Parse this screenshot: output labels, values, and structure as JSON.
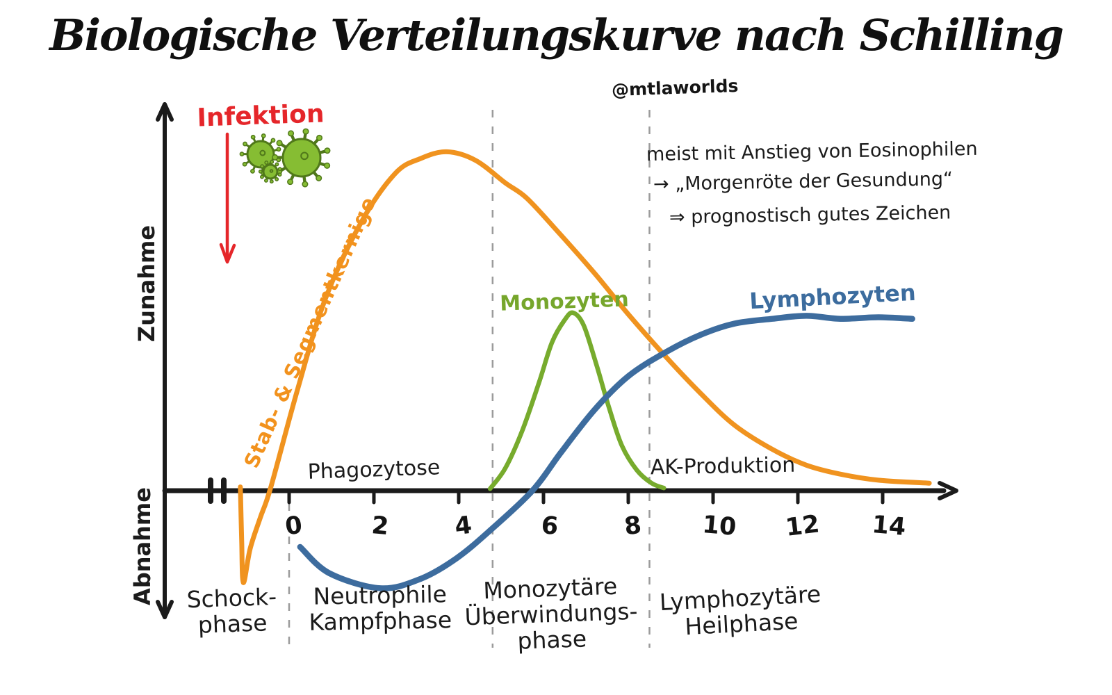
{
  "title": "Biologische Verteilungskurve nach Schilling",
  "credit": "@mtlaworlds",
  "colors": {
    "neutrophils_orange": "#f0931f",
    "monocytes_green": "#77ab2d",
    "lymphocytes_blue": "#3d6c9e",
    "infection_red": "#e5262a",
    "ink_black": "#1b1b1b",
    "divider_gray": "#9b9b9b",
    "virus_body_green": "#86bd33",
    "virus_outline_green": "#50781a"
  },
  "infection": {
    "label": "Infektion",
    "virus_icon_count": 3
  },
  "y_axis": {
    "top_label": "Zunahme",
    "bottom_label": "Abnahme"
  },
  "annotations": {
    "phagozytose": "Phagozytose",
    "ak_produktion": "AK-Produktion",
    "note_lines": [
      "meist mit Anstieg von Eosinophilen",
      "→ „Morgenröte der Gesundung“",
      "⇒ prognostisch gutes Zeichen"
    ]
  },
  "phases": [
    {
      "lines": [
        "Schock-",
        "phase"
      ]
    },
    {
      "lines": [
        "Neutrophile",
        "Kampfphase"
      ]
    },
    {
      "lines": [
        "Monozytäre",
        "Überwindungs-",
        "phase"
      ]
    },
    {
      "lines": [
        "Lymphozytäre",
        "Heilphase"
      ]
    }
  ],
  "chart_data": {
    "type": "line",
    "title": "Biologische Verteilungskurve nach Schilling",
    "xlabel": "",
    "ylabel_positive": "Zunahme",
    "ylabel_negative": "Abnahme",
    "x_ticks": [
      0,
      2,
      4,
      6,
      8,
      10,
      12,
      14
    ],
    "x_range": [
      -2,
      15.8
    ],
    "y_range": [
      -3.2,
      10.3
    ],
    "grid": false,
    "legend_position": "labels-on-curves",
    "phase_boundaries_x": [
      0,
      4.8,
      8.5
    ],
    "series": [
      {
        "id": "stab_segmentkernige",
        "name": "Stab- & Segmentkernige",
        "color": "#f0931f",
        "points": [
          [
            -1.15,
            0.1
          ],
          [
            -1.12,
            -1.3
          ],
          [
            -1.08,
            -2.45
          ],
          [
            -0.92,
            -1.55
          ],
          [
            -0.68,
            -0.72
          ],
          [
            -0.43,
            0.1
          ],
          [
            0.2,
            2.7
          ],
          [
            0.85,
            5.1
          ],
          [
            1.7,
            7.15
          ],
          [
            2.5,
            8.45
          ],
          [
            3.1,
            8.85
          ],
          [
            3.72,
            9.03
          ],
          [
            4.4,
            8.8
          ],
          [
            5.1,
            8.2
          ],
          [
            5.6,
            7.8
          ],
          [
            6.3,
            6.95
          ],
          [
            7.2,
            5.8
          ],
          [
            8.0,
            4.7
          ],
          [
            8.9,
            3.55
          ],
          [
            9.7,
            2.6
          ],
          [
            10.5,
            1.75
          ],
          [
            11.4,
            1.1
          ],
          [
            12.2,
            0.68
          ],
          [
            13.0,
            0.44
          ],
          [
            13.9,
            0.28
          ],
          [
            15.1,
            0.2
          ]
        ]
      },
      {
        "id": "monozyten",
        "name": "Monozyten",
        "color": "#77ab2d",
        "points": [
          [
            4.74,
            0.05
          ],
          [
            5.1,
            0.6
          ],
          [
            5.5,
            1.6
          ],
          [
            5.9,
            2.9
          ],
          [
            6.2,
            3.95
          ],
          [
            6.5,
            4.55
          ],
          [
            6.7,
            4.74
          ],
          [
            6.95,
            4.4
          ],
          [
            7.25,
            3.35
          ],
          [
            7.55,
            2.2
          ],
          [
            7.85,
            1.2
          ],
          [
            8.2,
            0.55
          ],
          [
            8.55,
            0.2
          ],
          [
            8.84,
            0.07
          ]
        ]
      },
      {
        "id": "lymphozyten",
        "name": "Lymphozyten",
        "color": "#3d6c9e",
        "points": [
          [
            0.26,
            -1.5
          ],
          [
            0.95,
            -2.2
          ],
          [
            2.15,
            -2.6
          ],
          [
            3.1,
            -2.35
          ],
          [
            3.95,
            -1.8
          ],
          [
            4.75,
            -1.05
          ],
          [
            5.74,
            0.0
          ],
          [
            6.4,
            1.0
          ],
          [
            7.2,
            2.15
          ],
          [
            8.0,
            3.05
          ],
          [
            8.9,
            3.7
          ],
          [
            9.7,
            4.15
          ],
          [
            10.5,
            4.45
          ],
          [
            11.4,
            4.58
          ],
          [
            12.2,
            4.66
          ],
          [
            13.0,
            4.58
          ],
          [
            13.9,
            4.62
          ],
          [
            14.7,
            4.58
          ]
        ]
      }
    ]
  }
}
